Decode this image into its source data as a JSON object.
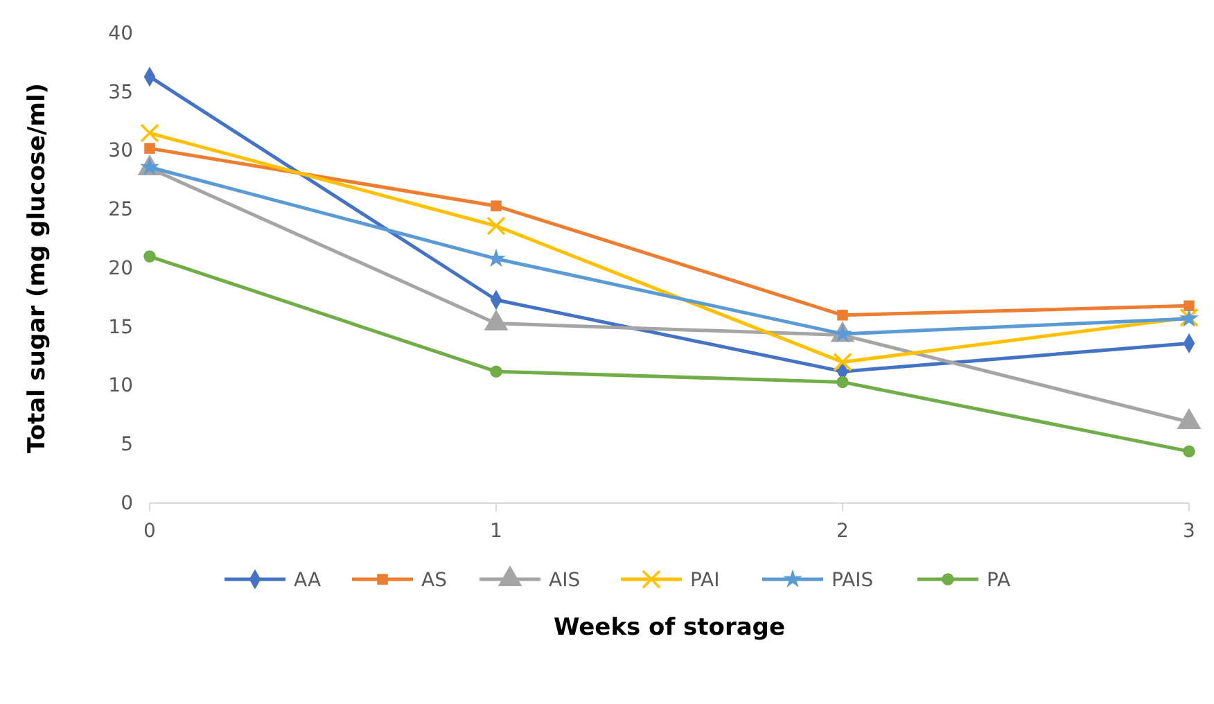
{
  "chart_data": {
    "type": "line",
    "xlabel": "Weeks of storage",
    "ylabel": "Total sugar (mg glucose/ml)",
    "x": [
      0,
      1,
      2,
      3
    ],
    "xlim": [
      0,
      3
    ],
    "xticks": [
      0,
      1,
      2,
      3
    ],
    "ylim": [
      0,
      40
    ],
    "yticks": [
      0,
      5,
      10,
      15,
      20,
      25,
      30,
      35,
      40
    ],
    "grid": false,
    "legend": "bottom",
    "series": [
      {
        "name": "AA",
        "color": "#4472c4",
        "marker": "diamond",
        "values": [
          36.3,
          17.3,
          11.2,
          13.6
        ]
      },
      {
        "name": "AS",
        "color": "#ed7d31",
        "marker": "square",
        "values": [
          30.2,
          25.3,
          16.0,
          16.8
        ]
      },
      {
        "name": "AIS",
        "color": "#a5a5a5",
        "marker": "triangle",
        "values": [
          28.5,
          15.3,
          14.3,
          6.9
        ]
      },
      {
        "name": "PAI",
        "color": "#ffc000",
        "marker": "cross",
        "values": [
          31.5,
          23.6,
          12.0,
          15.8
        ]
      },
      {
        "name": "PAIS",
        "color": "#5b9bd5",
        "marker": "star",
        "values": [
          28.6,
          20.8,
          14.4,
          15.7
        ]
      },
      {
        "name": "PA",
        "color": "#70ad47",
        "marker": "circle",
        "values": [
          21.0,
          11.2,
          10.3,
          4.4
        ]
      }
    ]
  }
}
